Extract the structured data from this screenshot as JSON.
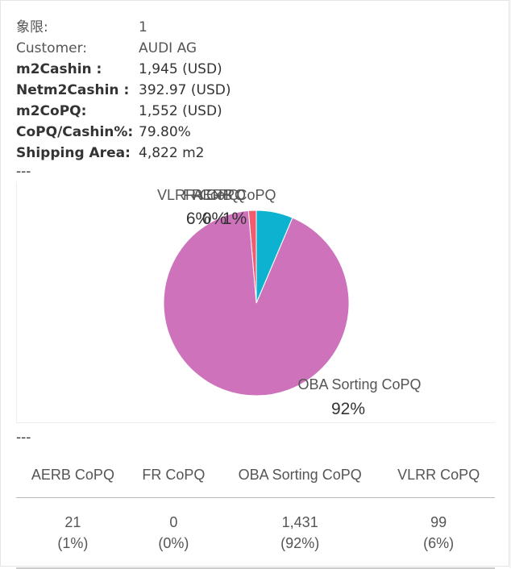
{
  "info": [
    {
      "key": "象限:",
      "value": "1",
      "style": "light"
    },
    {
      "key": "Customer:",
      "value": "AUDI AG",
      "style": "light"
    },
    {
      "key": "m2Cashin :",
      "value": "1,945 (USD)",
      "style": "bold"
    },
    {
      "key": "Netm2Cashin :",
      "value": "392.97 (USD)",
      "style": "bold"
    },
    {
      "key": "m2CoPQ:",
      "value": "1,552 (USD)",
      "style": "bold"
    },
    {
      "key": "CoPQ/Cashin%:",
      "value": "79.80%",
      "style": "bold"
    },
    {
      "key": "Shipping Area:",
      "value": "4,822 m2",
      "style": "bold"
    }
  ],
  "separator": "---",
  "chart_data": {
    "type": "pie",
    "slices": [
      {
        "name": "AERB CoPQ",
        "value": 21,
        "percent_label": "1%",
        "color": "#F25C6E"
      },
      {
        "name": "FR CoPQ",
        "value": 0,
        "percent_label": "0%",
        "color": "#F2C94C"
      },
      {
        "name": "OBA Sorting  CoPQ",
        "value": 1431,
        "percent_label": "92%",
        "color": "#CE72BB"
      },
      {
        "name": "VLRR CoPQ",
        "value": 99,
        "percent_label": "6%",
        "color": "#0CB2CF"
      }
    ],
    "legend": "none"
  },
  "table": {
    "headers": [
      "AERB CoPQ",
      "FR CoPQ",
      "OBA Sorting CoPQ",
      "VLRR CoPQ"
    ],
    "values": [
      "21",
      "0",
      "1,431",
      "99"
    ],
    "percents": [
      "(1%)",
      "(0%)",
      "(92%)",
      "(6%)"
    ]
  }
}
